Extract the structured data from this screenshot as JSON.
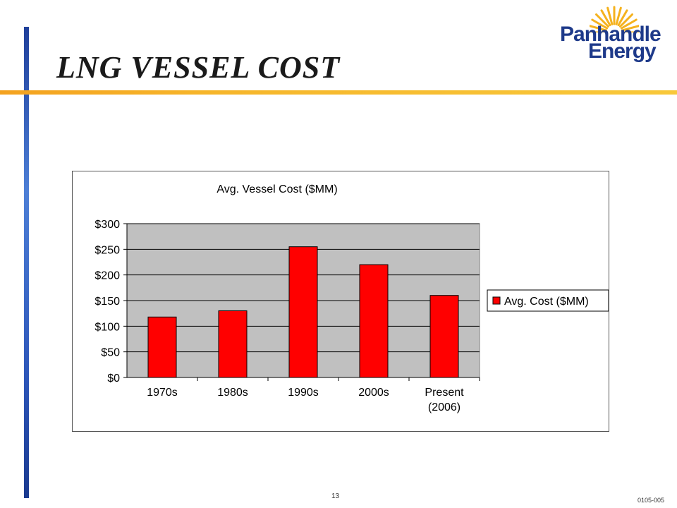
{
  "slide": {
    "title": "LNG VESSEL COST",
    "page_number": "13",
    "doc_code": "0105-005"
  },
  "logo": {
    "line1": "Panhandle",
    "line2": "Energy",
    "name_color": "#1e3a8a",
    "sun_color": "#f5b21e"
  },
  "chart_data": {
    "type": "bar",
    "title": "Avg. Vessel Cost ($MM)",
    "categories": [
      [
        "1970s"
      ],
      [
        "1980s"
      ],
      [
        "1990s"
      ],
      [
        "2000s"
      ],
      [
        "Present",
        "(2006)"
      ]
    ],
    "series": [
      {
        "name": "Avg. Cost ($MM)",
        "values": [
          118,
          130,
          255,
          220,
          160
        ],
        "color": "#ff0000"
      }
    ],
    "ylim": [
      0,
      300
    ],
    "yticks": [
      0,
      50,
      100,
      150,
      200,
      250,
      300
    ],
    "ytick_labels": [
      "$0",
      "$50",
      "$100",
      "$150",
      "$200",
      "$250",
      "$300"
    ],
    "grid": true,
    "plot_background": "#c0c0c0",
    "legend_position": "right"
  }
}
